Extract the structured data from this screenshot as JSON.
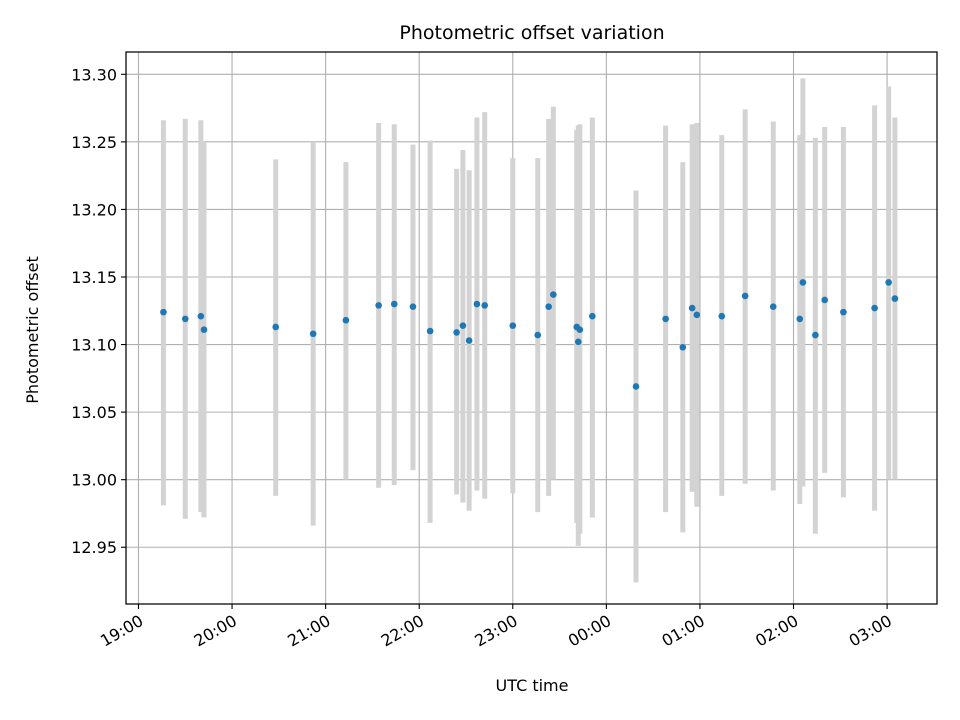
{
  "chart_data": {
    "type": "scatter",
    "title": "Photometric offset variation",
    "xlabel": "UTC time",
    "ylabel": "Photometric offset",
    "x_is_time": true,
    "xlim": [
      "18:52",
      "03:32"
    ],
    "ylim": [
      12.908,
      13.3165
    ],
    "x_ticks": [
      "19:00",
      "20:00",
      "21:00",
      "22:00",
      "23:00",
      "00:00",
      "01:00",
      "02:00",
      "03:00"
    ],
    "y_ticks": [
      "12.95",
      "13.00",
      "13.05",
      "13.10",
      "13.15",
      "13.20",
      "13.25",
      "13.30"
    ],
    "y_tick_values": [
      12.95,
      13.0,
      13.05,
      13.1,
      13.15,
      13.2,
      13.25,
      13.3
    ],
    "grid": true,
    "colors": {
      "marker": "#1f77b4",
      "errorbar": "#d3d3d3",
      "grid": "#b0b0b0"
    },
    "points": [
      {
        "x": "19:16",
        "y": 13.124,
        "err_low": 12.981,
        "err_high": 13.266
      },
      {
        "x": "19:30",
        "y": 13.119,
        "err_low": 12.971,
        "err_high": 13.267
      },
      {
        "x": "19:40",
        "y": 13.121,
        "err_low": 12.976,
        "err_high": 13.266
      },
      {
        "x": "19:42",
        "y": 13.111,
        "err_low": 12.972,
        "err_high": 13.25
      },
      {
        "x": "20:28",
        "y": 13.113,
        "err_low": 12.988,
        "err_high": 13.237
      },
      {
        "x": "20:52",
        "y": 13.108,
        "err_low": 12.966,
        "err_high": 13.25
      },
      {
        "x": "21:13",
        "y": 13.118,
        "err_low": 13.0,
        "err_high": 13.235
      },
      {
        "x": "21:34",
        "y": 13.129,
        "err_low": 12.994,
        "err_high": 13.264
      },
      {
        "x": "21:44",
        "y": 13.13,
        "err_low": 12.996,
        "err_high": 13.263
      },
      {
        "x": "21:56",
        "y": 13.128,
        "err_low": 13.007,
        "err_high": 13.248
      },
      {
        "x": "22:07",
        "y": 13.11,
        "err_low": 12.968,
        "err_high": 13.251
      },
      {
        "x": "22:24",
        "y": 13.109,
        "err_low": 12.989,
        "err_high": 13.23
      },
      {
        "x": "22:28",
        "y": 13.114,
        "err_low": 12.983,
        "err_high": 13.244
      },
      {
        "x": "22:32",
        "y": 13.103,
        "err_low": 12.977,
        "err_high": 13.229
      },
      {
        "x": "22:37",
        "y": 13.13,
        "err_low": 12.992,
        "err_high": 13.268
      },
      {
        "x": "22:42",
        "y": 13.129,
        "err_low": 12.986,
        "err_high": 13.272
      },
      {
        "x": "23:00",
        "y": 13.114,
        "err_low": 12.99,
        "err_high": 13.238
      },
      {
        "x": "23:16",
        "y": 13.107,
        "err_low": 12.976,
        "err_high": 13.238
      },
      {
        "x": "23:23",
        "y": 13.128,
        "err_low": 12.988,
        "err_high": 13.267
      },
      {
        "x": "23:26",
        "y": 13.137,
        "err_low": 13.0,
        "err_high": 13.276
      },
      {
        "x": "23:41",
        "y": 13.113,
        "err_low": 12.968,
        "err_high": 13.259
      },
      {
        "x": "23:42",
        "y": 13.102,
        "err_low": 12.951,
        "err_high": 13.262
      },
      {
        "x": "23:43",
        "y": 13.111,
        "err_low": 12.96,
        "err_high": 13.263
      },
      {
        "x": "23:51",
        "y": 13.121,
        "err_low": 12.972,
        "err_high": 13.268
      },
      {
        "x": "00:19",
        "y": 13.069,
        "err_low": 12.924,
        "err_high": 13.214
      },
      {
        "x": "00:38",
        "y": 13.119,
        "err_low": 12.976,
        "err_high": 13.262
      },
      {
        "x": "00:49",
        "y": 13.098,
        "err_low": 12.961,
        "err_high": 13.235
      },
      {
        "x": "00:55",
        "y": 13.127,
        "err_low": 12.991,
        "err_high": 13.263
      },
      {
        "x": "00:58",
        "y": 13.122,
        "err_low": 12.98,
        "err_high": 13.264
      },
      {
        "x": "01:14",
        "y": 13.121,
        "err_low": 12.988,
        "err_high": 13.255
      },
      {
        "x": "01:29",
        "y": 13.136,
        "err_low": 12.997,
        "err_high": 13.274
      },
      {
        "x": "01:47",
        "y": 13.128,
        "err_low": 12.992,
        "err_high": 13.265
      },
      {
        "x": "02:04",
        "y": 13.119,
        "err_low": 12.982,
        "err_high": 13.255
      },
      {
        "x": "02:06",
        "y": 13.146,
        "err_low": 12.995,
        "err_high": 13.297
      },
      {
        "x": "02:14",
        "y": 13.107,
        "err_low": 12.96,
        "err_high": 13.253
      },
      {
        "x": "02:20",
        "y": 13.133,
        "err_low": 13.005,
        "err_high": 13.261
      },
      {
        "x": "02:32",
        "y": 13.124,
        "err_low": 12.987,
        "err_high": 13.261
      },
      {
        "x": "02:52",
        "y": 13.127,
        "err_low": 12.977,
        "err_high": 13.277
      },
      {
        "x": "03:01",
        "y": 13.146,
        "err_low": 13.0,
        "err_high": 13.291
      },
      {
        "x": "03:05",
        "y": 13.134,
        "err_low": 13.0,
        "err_high": 13.268
      }
    ]
  }
}
